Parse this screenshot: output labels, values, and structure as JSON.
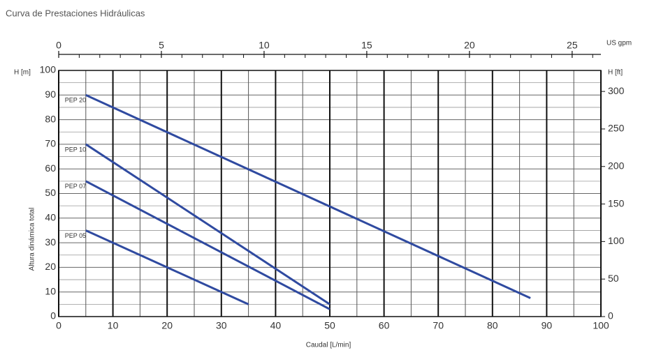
{
  "chart_data": {
    "type": "line",
    "title": "Curva de Prestaciones Hidráulicas",
    "x_label": "Caudal [L/min]",
    "y_label": "Altura dinámica total",
    "y_unit": "H [m]",
    "y2_unit": "H [ft]",
    "x2_unit": "US gpm",
    "xlim": [
      0,
      100
    ],
    "xticks": [
      0,
      10,
      20,
      30,
      40,
      50,
      60,
      70,
      80,
      90,
      100
    ],
    "xminor": [
      5,
      15,
      25,
      35,
      45,
      55,
      65,
      75,
      85,
      95
    ],
    "ylim": [
      0,
      100
    ],
    "yticks": [
      0,
      10,
      20,
      30,
      40,
      50,
      60,
      70,
      80,
      90,
      100
    ],
    "yminor": [
      5,
      15,
      25,
      35,
      45,
      55,
      65,
      75,
      85,
      95
    ],
    "x2lim": [
      0,
      26.4
    ],
    "x2ticks": [
      0,
      5,
      10,
      15,
      20,
      25
    ],
    "x2minor": [
      1,
      2,
      3,
      4,
      6,
      7,
      8,
      9,
      11,
      12,
      13,
      14,
      16,
      17,
      18,
      19,
      21,
      22,
      23,
      24,
      26
    ],
    "y2lim": [
      0,
      328
    ],
    "y2ticks": [
      0,
      50,
      100,
      150,
      200,
      250,
      300
    ],
    "grid": true,
    "series": [
      {
        "name": "PEP 20",
        "color": "#2f4aa0",
        "x": [
          5,
          87
        ],
        "values": [
          90,
          7.5
        ]
      },
      {
        "name": "PEP 10",
        "color": "#2f4aa0",
        "x": [
          5,
          50
        ],
        "values": [
          70,
          5
        ]
      },
      {
        "name": "PEP 07",
        "color": "#2f4aa0",
        "x": [
          5,
          50
        ],
        "values": [
          55,
          3
        ]
      },
      {
        "name": "PEP 05",
        "color": "#2f4aa0",
        "x": [
          5,
          35
        ],
        "values": [
          35,
          5
        ]
      }
    ]
  }
}
